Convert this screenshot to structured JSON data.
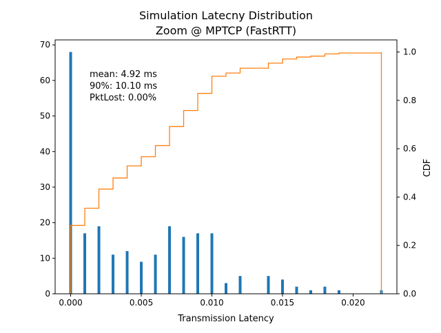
{
  "chart_data": {
    "type": "bar",
    "title": "Simulation Latecny Distribution",
    "subtitle": "Zoom @ MPTCP (FastRTT)",
    "xlabel": "Transmission Latency",
    "ylabel": "",
    "y2label": "CDF",
    "xlim": [
      -0.0011,
      0.0231
    ],
    "ylim": [
      0,
      71.4
    ],
    "y2lim": [
      0,
      1.05
    ],
    "xticks": [
      0.0,
      0.005,
      0.01,
      0.015,
      0.02
    ],
    "xtick_labels": [
      "0.000",
      "0.005",
      "0.010",
      "0.015",
      "0.020"
    ],
    "yticks": [
      0,
      10,
      20,
      30,
      40,
      50,
      60,
      70
    ],
    "ytick_labels": [
      "0",
      "10",
      "20",
      "30",
      "40",
      "50",
      "60",
      "70"
    ],
    "y2ticks": [
      0,
      0.2,
      0.4,
      0.6,
      0.8,
      1.0
    ],
    "y2tick_labels": [
      "0.0",
      "0.2",
      "0.4",
      "0.6",
      "0.8",
      "1.0"
    ],
    "annotation": [
      "mean: 4.92 ms",
      "90%: 10.10 ms",
      "PktLost: 0.00%"
    ],
    "grid": false,
    "series": [
      {
        "type": "bar",
        "color": "#1f77b4",
        "x": [
          0.0,
          0.001,
          0.002,
          0.003,
          0.004,
          0.005,
          0.006,
          0.007,
          0.008,
          0.009,
          0.01,
          0.011,
          0.012,
          0.014,
          0.015,
          0.016,
          0.017,
          0.018,
          0.019,
          0.022
        ],
        "values": [
          68,
          17,
          19,
          11,
          12,
          9,
          11,
          19,
          16,
          17,
          17,
          3,
          5,
          5,
          4,
          2,
          1,
          2,
          1,
          1
        ]
      },
      {
        "type": "step",
        "axis": "right",
        "color": "#ff7f0e",
        "x": [
          0.0,
          0.001,
          0.002,
          0.003,
          0.004,
          0.005,
          0.006,
          0.007,
          0.008,
          0.009,
          0.01,
          0.011,
          0.012,
          0.014,
          0.015,
          0.016,
          0.017,
          0.018,
          0.019,
          0.022
        ],
        "values": [
          0.283,
          0.354,
          0.433,
          0.479,
          0.529,
          0.567,
          0.613,
          0.692,
          0.758,
          0.829,
          0.9,
          0.913,
          0.933,
          0.954,
          0.971,
          0.979,
          0.983,
          0.992,
          0.996,
          1.0
        ]
      }
    ]
  }
}
